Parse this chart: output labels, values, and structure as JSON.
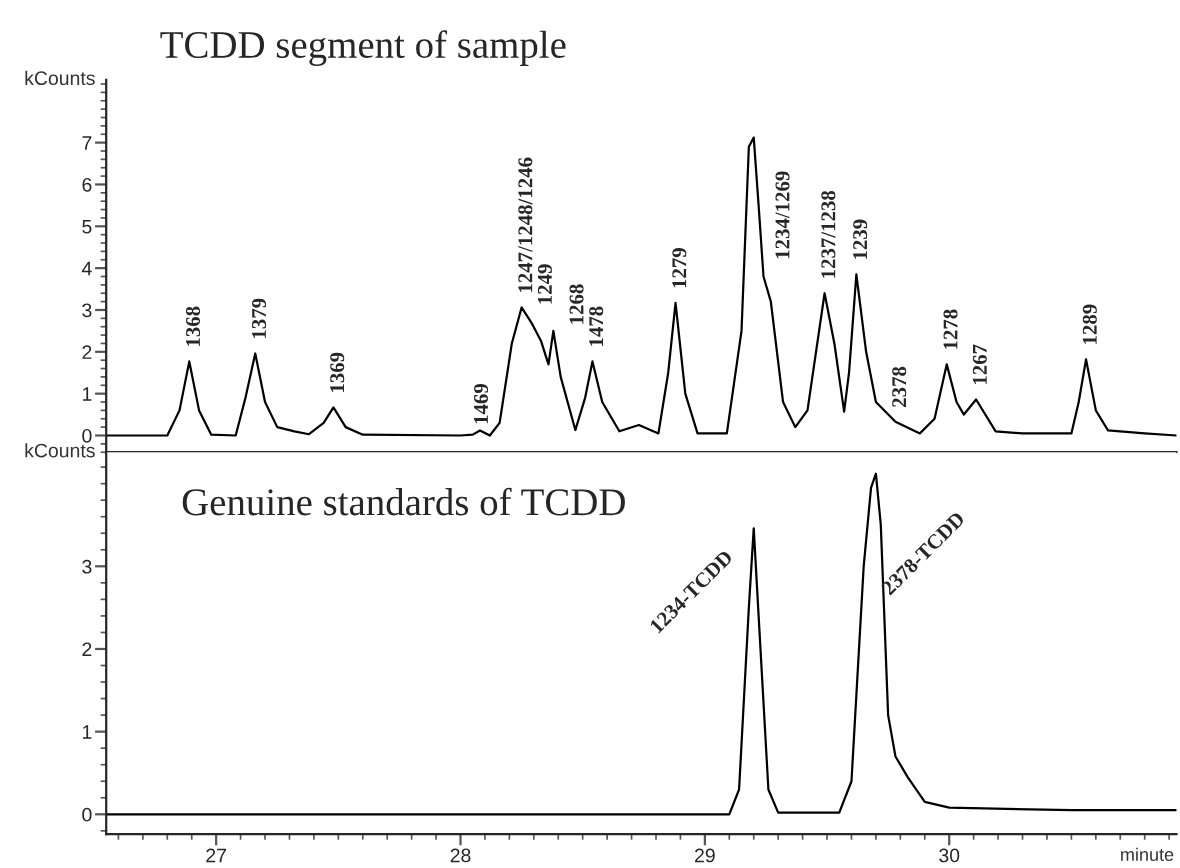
{
  "chart_data": [
    {
      "type": "line",
      "title": "TCDD segment of sample",
      "ylabel": "kCounts",
      "tick_labels": "y",
      "xlim": [
        26.55,
        30.93
      ],
      "ylim": [
        -0.4,
        8.5
      ],
      "yticks": [
        0,
        1,
        2,
        3,
        4,
        5,
        6,
        7
      ],
      "x": [
        26.55,
        26.8,
        26.85,
        26.89,
        26.93,
        26.98,
        27.08,
        27.12,
        27.16,
        27.2,
        27.25,
        27.32,
        27.38,
        27.44,
        27.48,
        27.53,
        27.6,
        28.0,
        28.05,
        28.08,
        28.12,
        28.16,
        28.21,
        28.25,
        28.29,
        28.33,
        28.36,
        28.38,
        28.41,
        28.47,
        28.51,
        28.54,
        28.58,
        28.65,
        28.73,
        28.81,
        28.85,
        28.88,
        28.92,
        28.97,
        29.09,
        29.15,
        29.18,
        29.2,
        29.22,
        29.24,
        29.27,
        29.32,
        29.37,
        29.42,
        29.49,
        29.53,
        29.57,
        29.59,
        29.62,
        29.66,
        29.7,
        29.78,
        29.88,
        29.94,
        29.99,
        30.03,
        30.06,
        30.11,
        30.19,
        30.3,
        30.5,
        30.53,
        30.56,
        30.6,
        30.65,
        30.8,
        30.93
      ],
      "values": [
        0.0,
        0.0,
        0.6,
        1.77,
        0.6,
        0.02,
        0.0,
        0.9,
        1.96,
        0.8,
        0.2,
        0.1,
        0.03,
        0.3,
        0.67,
        0.2,
        0.02,
        0.0,
        0.02,
        0.12,
        0.0,
        0.3,
        2.2,
        3.06,
        2.7,
        2.25,
        1.7,
        2.5,
        1.4,
        0.13,
        0.9,
        1.77,
        0.8,
        0.1,
        0.25,
        0.05,
        1.5,
        3.17,
        1.0,
        0.05,
        0.05,
        2.5,
        6.9,
        7.12,
        5.5,
        3.8,
        3.2,
        0.8,
        0.2,
        0.6,
        3.4,
        2.2,
        0.57,
        1.5,
        3.85,
        2.0,
        0.8,
        0.33,
        0.05,
        0.4,
        1.7,
        0.8,
        0.5,
        0.86,
        0.1,
        0.05,
        0.05,
        0.8,
        1.82,
        0.6,
        0.12,
        0.05,
        0.0
      ],
      "color": "#000000",
      "annotations": [
        {
          "text": "1368",
          "x": 26.89,
          "y": 1.77
        },
        {
          "text": "1379",
          "x": 27.16,
          "y": 1.96
        },
        {
          "text": "1369",
          "x": 27.48,
          "y": 0.67
        },
        {
          "text": "1469",
          "x": 28.08,
          "y": 0.12
        },
        {
          "text": "1247/1248/1246",
          "x": 28.25,
          "y": 3.06
        },
        {
          "text": "1249",
          "x": 28.33,
          "y": 2.25
        },
        {
          "text": "1268",
          "x": 28.38,
          "y": 2.5
        },
        {
          "text": "1478",
          "x": 28.54,
          "y": 1.77
        },
        {
          "text": "1279",
          "x": 28.88,
          "y": 3.17
        },
        {
          "text": "1234/1269",
          "x": 29.2,
          "y": 7.12
        },
        {
          "text": "1237/1238",
          "x": 29.49,
          "y": 3.4
        },
        {
          "text": "1239",
          "x": 29.62,
          "y": 3.85
        },
        {
          "text": "2378",
          "x": 29.78,
          "y": 0.33
        },
        {
          "text": "1278",
          "x": 29.99,
          "y": 1.7
        },
        {
          "text": "1267",
          "x": 30.11,
          "y": 0.86
        },
        {
          "text": "1289",
          "x": 30.56,
          "y": 1.82
        }
      ]
    },
    {
      "type": "line",
      "ylabel": "kCounts",
      "xlabel": "minute",
      "xlim": [
        26.55,
        30.93
      ],
      "xticks": [
        27,
        28,
        29,
        30
      ],
      "ylim": [
        -0.24,
        4.38
      ],
      "yticks": [
        0,
        1,
        2,
        3
      ],
      "x": [
        26.55,
        27.5,
        28.5,
        29.1,
        29.14,
        29.18,
        29.2,
        29.22,
        29.26,
        29.3,
        29.55,
        29.6,
        29.65,
        29.68,
        29.7,
        29.72,
        29.75,
        29.78,
        29.83,
        29.9,
        30.0,
        30.5,
        30.93
      ],
      "values": [
        0.0,
        0.0,
        0.0,
        0.0,
        0.3,
        2.5,
        3.46,
        2.4,
        0.3,
        0.02,
        0.02,
        0.4,
        3.0,
        3.95,
        4.12,
        3.5,
        1.2,
        0.7,
        0.45,
        0.15,
        0.08,
        0.05,
        0.05
      ],
      "color": "#000000",
      "annotations": [
        {
          "text": "1234-TCDD",
          "x": 29.2,
          "y": 3.46
        },
        "Genuine standards of TCDD",
        {
          "text": "2378-TCDD",
          "x": 29.77,
          "y": 2.6
        }
      ]
    }
  ]
}
